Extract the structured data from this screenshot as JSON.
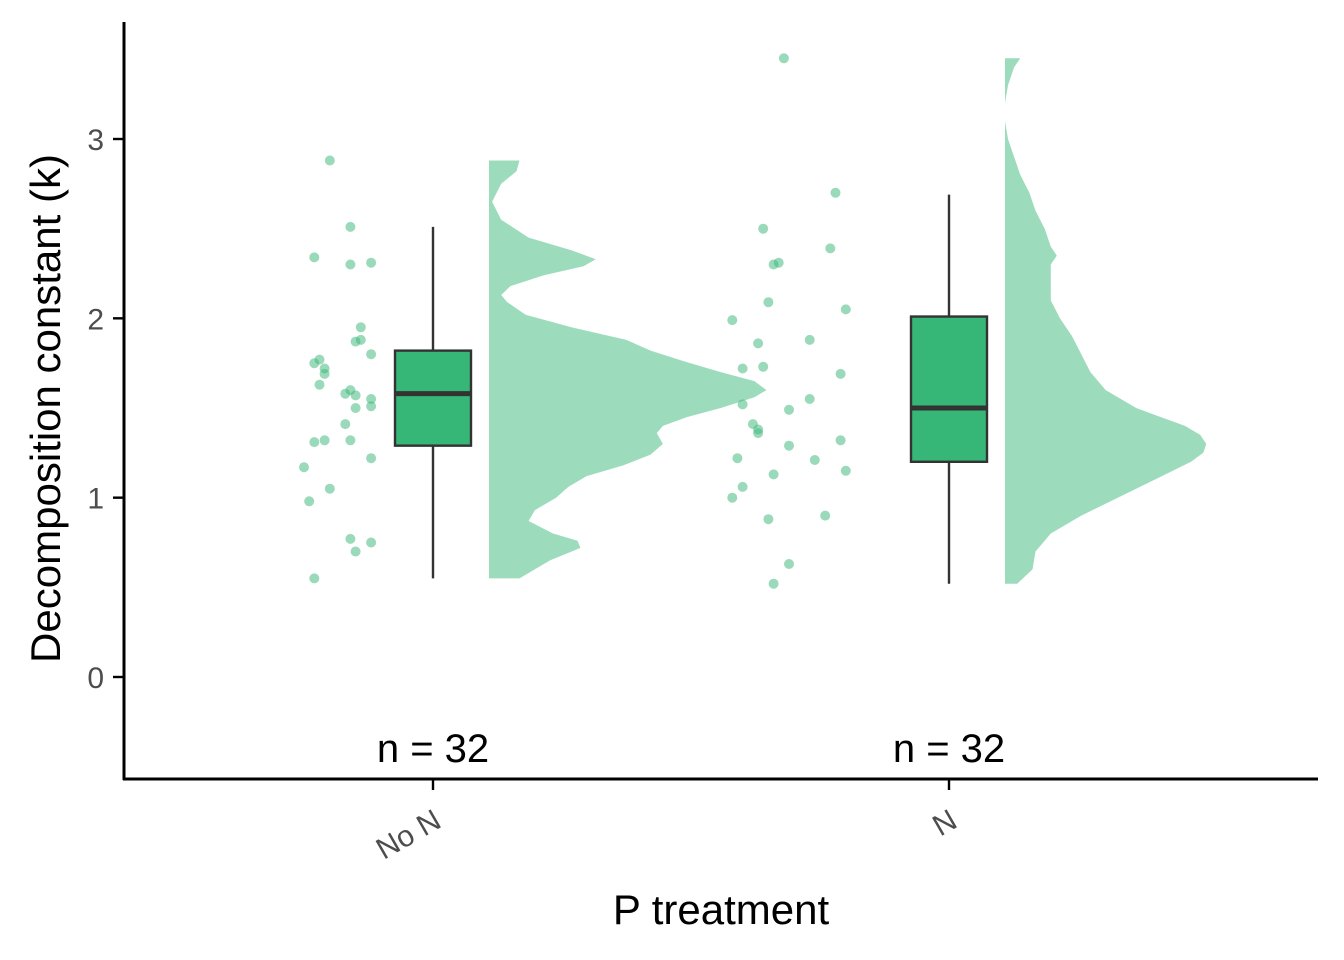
{
  "chart_data": {
    "type": "raincloud",
    "xlabel": "P treatment",
    "ylabel": "Decomposition constant (k)",
    "ylim": [
      -0.55,
      3.6
    ],
    "yticks": [
      0,
      1,
      2,
      3
    ],
    "grid": false,
    "legend": "none",
    "colors": {
      "box_fill": "#36B677",
      "density_fill": "#9CDCBD",
      "point": "#36B677",
      "box_line": "#333333",
      "axis": "#000000"
    },
    "categories": [
      "No N",
      "N"
    ],
    "groups": [
      {
        "category": "No N",
        "count_label": "n = 32",
        "box": {
          "min": 0.55,
          "q1": 1.29,
          "median": 1.58,
          "q3": 1.82,
          "max": 2.51
        },
        "points": [
          {
            "offset": -0.2,
            "y": 2.88
          },
          {
            "offset": -0.16,
            "y": 2.51
          },
          {
            "offset": -0.23,
            "y": 2.34
          },
          {
            "offset": -0.16,
            "y": 2.3
          },
          {
            "offset": -0.12,
            "y": 2.31
          },
          {
            "offset": -0.14,
            "y": 1.95
          },
          {
            "offset": -0.14,
            "y": 1.88
          },
          {
            "offset": -0.15,
            "y": 1.87
          },
          {
            "offset": -0.12,
            "y": 1.8
          },
          {
            "offset": -0.22,
            "y": 1.77
          },
          {
            "offset": -0.23,
            "y": 1.75
          },
          {
            "offset": -0.21,
            "y": 1.72
          },
          {
            "offset": -0.21,
            "y": 1.69
          },
          {
            "offset": -0.22,
            "y": 1.63
          },
          {
            "offset": -0.16,
            "y": 1.6
          },
          {
            "offset": -0.17,
            "y": 1.58
          },
          {
            "offset": -0.15,
            "y": 1.57
          },
          {
            "offset": -0.12,
            "y": 1.55
          },
          {
            "offset": -0.15,
            "y": 1.5
          },
          {
            "offset": -0.12,
            "y": 1.51
          },
          {
            "offset": -0.17,
            "y": 1.41
          },
          {
            "offset": -0.21,
            "y": 1.32
          },
          {
            "offset": -0.23,
            "y": 1.31
          },
          {
            "offset": -0.16,
            "y": 1.32
          },
          {
            "offset": -0.12,
            "y": 1.22
          },
          {
            "offset": -0.25,
            "y": 1.17
          },
          {
            "offset": -0.2,
            "y": 1.05
          },
          {
            "offset": -0.24,
            "y": 0.98
          },
          {
            "offset": -0.16,
            "y": 0.77
          },
          {
            "offset": -0.12,
            "y": 0.75
          },
          {
            "offset": -0.15,
            "y": 0.7
          },
          {
            "offset": -0.23,
            "y": 0.55
          }
        ],
        "density": {
          "y": [
            0.55,
            0.65,
            0.72,
            0.76,
            0.8,
            0.87,
            0.93,
            1.0,
            1.06,
            1.12,
            1.18,
            1.24,
            1.3,
            1.36,
            1.4,
            1.45,
            1.5,
            1.56,
            1.6,
            1.65,
            1.7,
            1.76,
            1.82,
            1.88,
            1.95,
            2.02,
            2.09,
            2.13,
            2.18,
            2.24,
            2.29,
            2.33,
            2.38,
            2.45,
            2.55,
            2.65,
            2.75,
            2.82,
            2.88
          ],
          "width": [
            0.1,
            0.2,
            0.3,
            0.29,
            0.21,
            0.13,
            0.15,
            0.22,
            0.26,
            0.32,
            0.44,
            0.53,
            0.57,
            0.55,
            0.57,
            0.65,
            0.76,
            0.87,
            0.91,
            0.87,
            0.76,
            0.64,
            0.53,
            0.45,
            0.27,
            0.12,
            0.06,
            0.04,
            0.07,
            0.18,
            0.31,
            0.35,
            0.27,
            0.13,
            0.04,
            0.01,
            0.04,
            0.09,
            0.1
          ]
        }
      },
      {
        "category": "N",
        "count_label": "n = 32",
        "box": {
          "min": 0.52,
          "q1": 1.2,
          "median": 1.5,
          "q3": 2.01,
          "max": 2.69
        },
        "points": [
          {
            "offset": -0.32,
            "y": 3.45
          },
          {
            "offset": -0.22,
            "y": 2.7
          },
          {
            "offset": -0.36,
            "y": 2.5
          },
          {
            "offset": -0.23,
            "y": 2.39
          },
          {
            "offset": -0.33,
            "y": 2.31
          },
          {
            "offset": -0.34,
            "y": 2.3
          },
          {
            "offset": -0.35,
            "y": 2.09
          },
          {
            "offset": -0.2,
            "y": 2.05
          },
          {
            "offset": -0.42,
            "y": 1.99
          },
          {
            "offset": -0.27,
            "y": 1.88
          },
          {
            "offset": -0.37,
            "y": 1.86
          },
          {
            "offset": -0.36,
            "y": 1.73
          },
          {
            "offset": -0.4,
            "y": 1.72
          },
          {
            "offset": -0.21,
            "y": 1.69
          },
          {
            "offset": -0.27,
            "y": 1.55
          },
          {
            "offset": -0.4,
            "y": 1.52
          },
          {
            "offset": -0.31,
            "y": 1.49
          },
          {
            "offset": -0.38,
            "y": 1.41
          },
          {
            "offset": -0.37,
            "y": 1.38
          },
          {
            "offset": -0.37,
            "y": 1.36
          },
          {
            "offset": -0.21,
            "y": 1.32
          },
          {
            "offset": -0.31,
            "y": 1.29
          },
          {
            "offset": -0.41,
            "y": 1.22
          },
          {
            "offset": -0.26,
            "y": 1.21
          },
          {
            "offset": -0.2,
            "y": 1.15
          },
          {
            "offset": -0.34,
            "y": 1.13
          },
          {
            "offset": -0.4,
            "y": 1.06
          },
          {
            "offset": -0.42,
            "y": 1.0
          },
          {
            "offset": -0.24,
            "y": 0.9
          },
          {
            "offset": -0.35,
            "y": 0.88
          },
          {
            "offset": -0.31,
            "y": 0.63
          },
          {
            "offset": -0.34,
            "y": 0.52
          }
        ],
        "density": {
          "y": [
            0.52,
            0.6,
            0.7,
            0.8,
            0.9,
            1.0,
            1.1,
            1.15,
            1.2,
            1.25,
            1.3,
            1.35,
            1.4,
            1.45,
            1.5,
            1.6,
            1.7,
            1.8,
            1.9,
            2.0,
            2.1,
            2.2,
            2.3,
            2.35,
            2.4,
            2.5,
            2.6,
            2.7,
            2.8,
            2.9,
            3.0,
            3.1,
            3.2,
            3.3,
            3.4,
            3.45
          ],
          "width": [
            0.04,
            0.09,
            0.1,
            0.15,
            0.25,
            0.37,
            0.49,
            0.55,
            0.61,
            0.65,
            0.66,
            0.64,
            0.59,
            0.51,
            0.43,
            0.33,
            0.28,
            0.25,
            0.22,
            0.18,
            0.15,
            0.15,
            0.15,
            0.17,
            0.15,
            0.13,
            0.1,
            0.08,
            0.05,
            0.03,
            0.01,
            0.0,
            0.0,
            0.01,
            0.03,
            0.05
          ]
        }
      }
    ]
  }
}
